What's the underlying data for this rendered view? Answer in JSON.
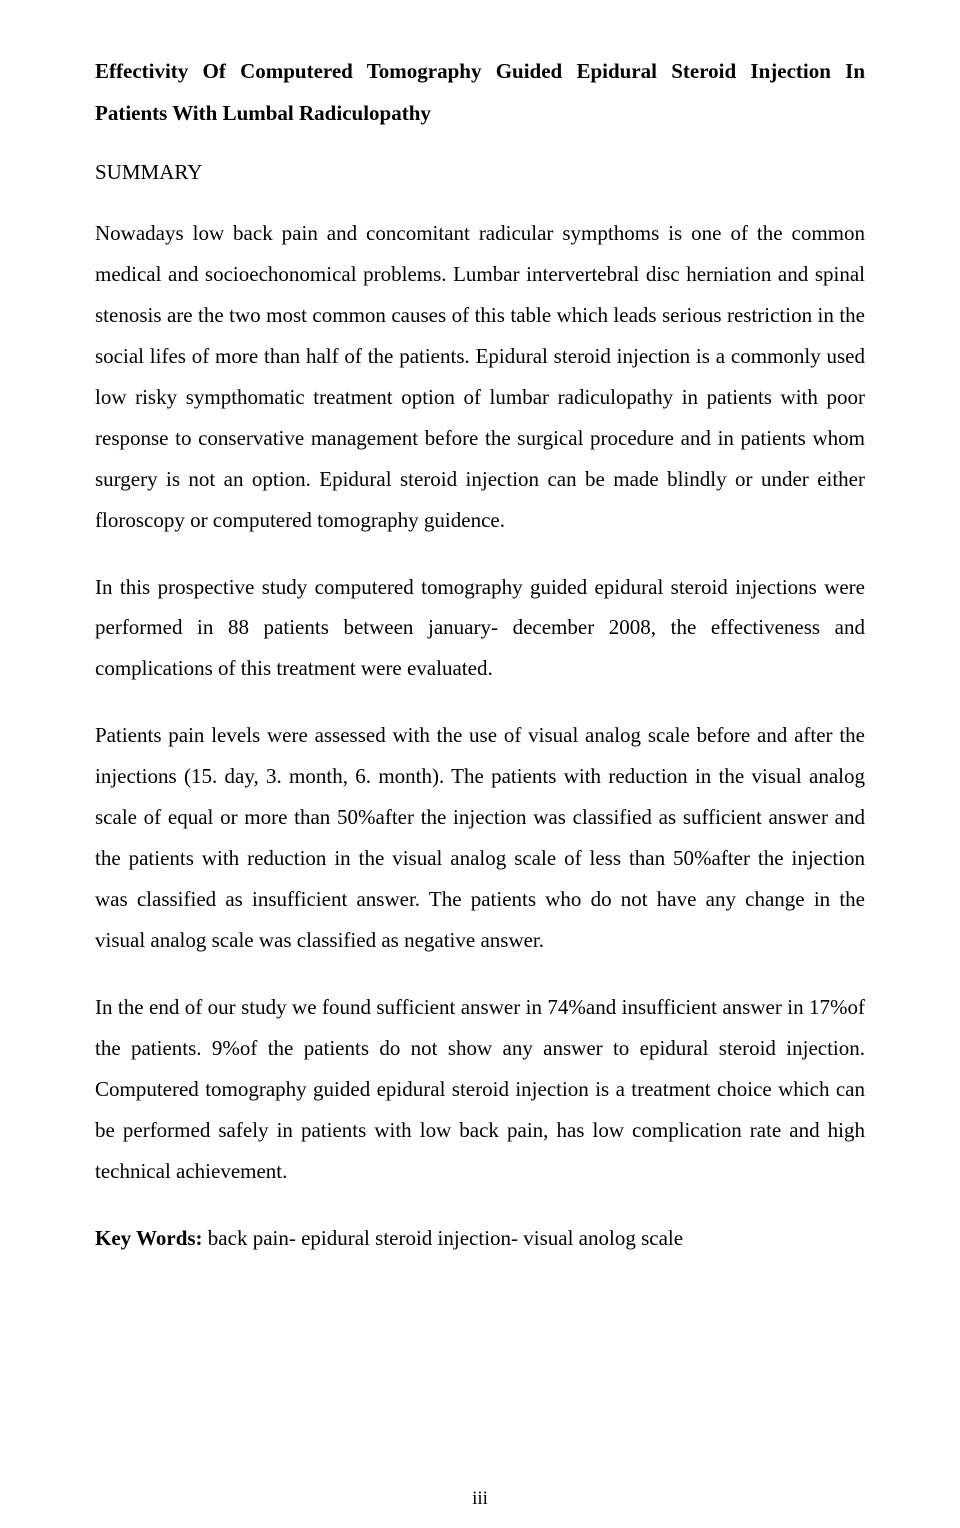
{
  "title": "Effectivity Of Computered Tomography Guided Epidural Steroid Injection In Patients With Lumbal Radiculopathy",
  "section_heading": "SUMMARY",
  "paragraphs": {
    "p1": "Nowadays low back pain and concomitant radicular sympthoms is one of the common medical and socioechonomical problems. Lumbar intervertebral disc herniation and spinal stenosis are the two most common causes of this table which leads serious restriction in the social lifes of more than half of the patients. Epidural steroid injection is a commonly used low risky sympthomatic treatment option of lumbar radiculopathy in patients with poor response to conservative management before the surgical procedure and in patients whom surgery is not an option. Epidural steroid injection can be made blindly or under either floroscopy or computered tomography guidence.",
    "p2": "In this prospective study computered tomography guided epidural steroid injections were performed in 88 patients between january- december 2008, the effectiveness and complications of this treatment were evaluated.",
    "p3": "Patients pain levels were assessed with the use of visual analog scale before and after the injections (15. day, 3. month, 6. month). The patients with reduction in the visual analog scale of equal or more than 50%after the injection was classified as sufficient answer and the patients with reduction in the visual analog scale of less than 50%after the injection was classified as insufficient answer. The patients who do not have any change in the visual analog scale was classified as negative answer.",
    "p4": "In the end of our study we found sufficient answer in 74%and insufficient answer in 17%of the patients. 9%of the patients do not show any answer to epidural steroid injection. Computered tomography guided epidural steroid injection is a treatment choice which can be performed safely in patients with low back pain, has low complication rate and high technical achievement."
  },
  "keywords": {
    "label": "Key Words:",
    "text": " back pain- epidural steroid injection- visual anolog scale"
  },
  "page_number": "iii"
}
